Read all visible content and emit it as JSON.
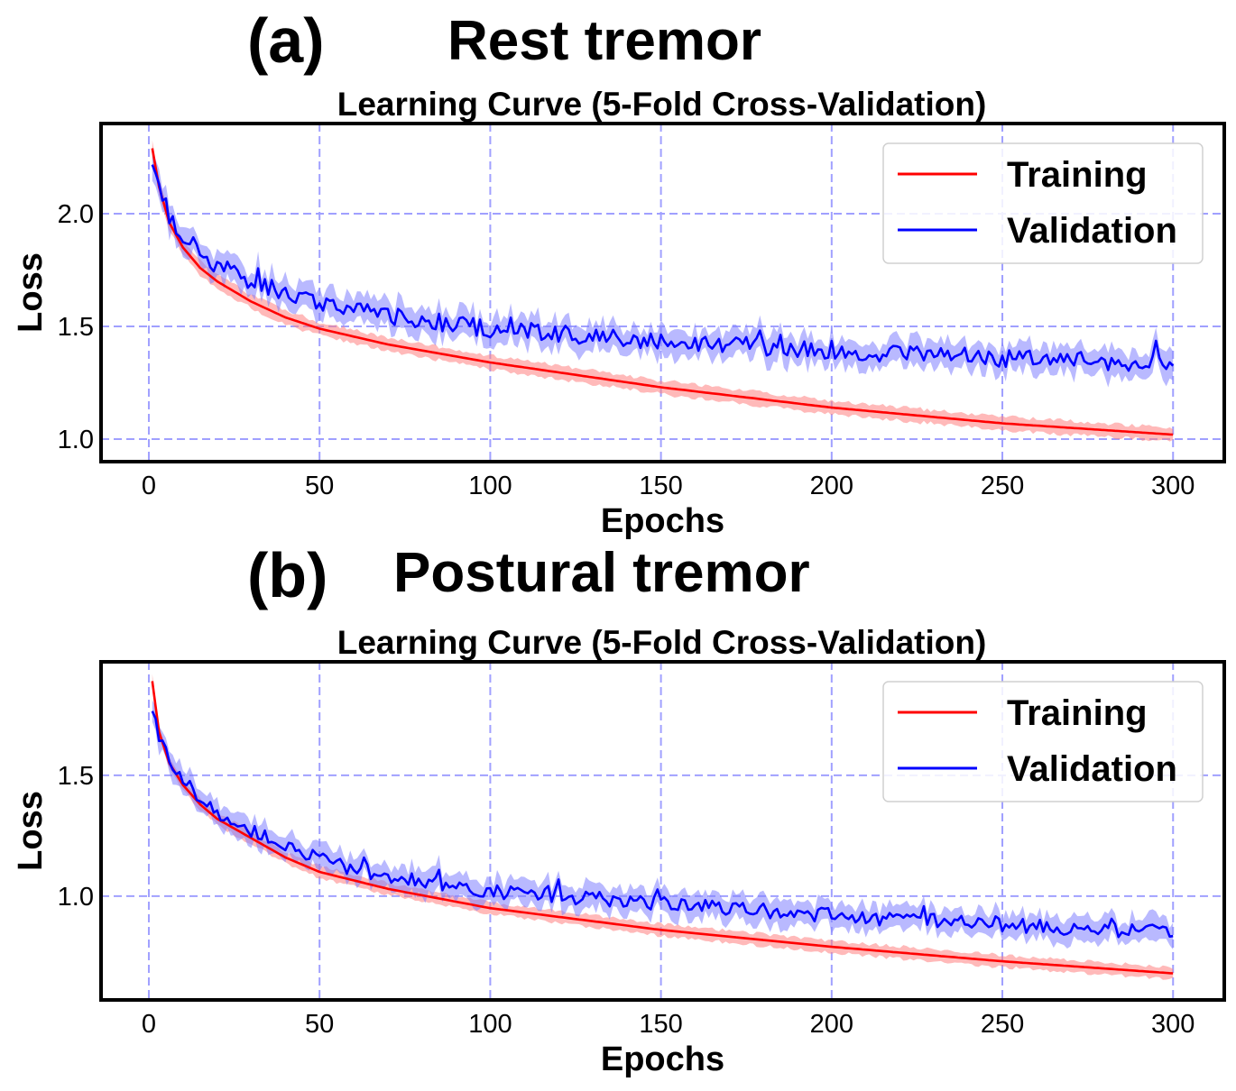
{
  "figure": {
    "panels": [
      {
        "label": "(a)",
        "title": "Rest tremor"
      },
      {
        "label": "(b)",
        "title": "Postural tremor"
      }
    ]
  },
  "chart_data": [
    {
      "type": "line",
      "title": "Learning Curve (5-Fold Cross-Validation)",
      "xlabel": "Epochs",
      "ylabel": "Loss",
      "xlim": [
        -14,
        315
      ],
      "ylim": [
        0.9,
        2.4
      ],
      "xticks": [
        0,
        50,
        100,
        150,
        200,
        250,
        300
      ],
      "yticks": [
        1.0,
        1.5,
        2.0
      ],
      "xtick_labels": [
        "0",
        "50",
        "100",
        "150",
        "200",
        "250",
        "300"
      ],
      "ytick_labels": [
        "1.0",
        "1.5",
        "2.0"
      ],
      "grid": true,
      "legend": {
        "position": "top-right",
        "entries": [
          "Training",
          "Validation"
        ]
      },
      "series": [
        {
          "name": "Training",
          "color": "#ff0000",
          "band_color": "#ff8080",
          "x": [
            1,
            3,
            6,
            10,
            15,
            20,
            30,
            40,
            50,
            70,
            100,
            150,
            200,
            250,
            300
          ],
          "values": [
            2.29,
            2.12,
            1.96,
            1.85,
            1.76,
            1.7,
            1.61,
            1.54,
            1.49,
            1.42,
            1.34,
            1.23,
            1.14,
            1.07,
            1.02
          ],
          "band": 0.03
        },
        {
          "name": "Validation",
          "color": "#0000ff",
          "band_color": "#8080ff",
          "x": [
            1,
            3,
            6,
            10,
            15,
            20,
            30,
            40,
            50,
            70,
            100,
            150,
            200,
            250,
            300
          ],
          "values": [
            2.25,
            2.13,
            1.98,
            1.9,
            1.83,
            1.77,
            1.7,
            1.65,
            1.6,
            1.55,
            1.49,
            1.43,
            1.39,
            1.36,
            1.33
          ],
          "band": 0.06,
          "noise": 0.04
        }
      ]
    },
    {
      "type": "line",
      "title": "Learning Curve (5-Fold Cross-Validation)",
      "xlabel": "Epochs",
      "ylabel": "Loss",
      "xlim": [
        -14,
        315
      ],
      "ylim": [
        0.57,
        1.97
      ],
      "xticks": [
        0,
        50,
        100,
        150,
        200,
        250,
        300
      ],
      "yticks": [
        1.0,
        1.5
      ],
      "xtick_labels": [
        "0",
        "50",
        "100",
        "150",
        "200",
        "250",
        "300"
      ],
      "ytick_labels": [
        "1.0",
        "1.5"
      ],
      "grid": true,
      "legend": {
        "position": "top-right",
        "entries": [
          "Training",
          "Validation"
        ]
      },
      "series": [
        {
          "name": "Training",
          "color": "#ff0000",
          "band_color": "#ff8080",
          "x": [
            1,
            3,
            6,
            10,
            15,
            20,
            30,
            40,
            50,
            70,
            100,
            150,
            200,
            250,
            300
          ],
          "values": [
            1.89,
            1.68,
            1.55,
            1.46,
            1.38,
            1.32,
            1.24,
            1.16,
            1.1,
            1.03,
            0.95,
            0.86,
            0.79,
            0.73,
            0.68
          ],
          "band": 0.025
        },
        {
          "name": "Validation",
          "color": "#0000ff",
          "band_color": "#8080ff",
          "x": [
            1,
            3,
            6,
            10,
            15,
            20,
            30,
            40,
            50,
            70,
            100,
            150,
            200,
            250,
            300
          ],
          "values": [
            1.79,
            1.66,
            1.56,
            1.48,
            1.41,
            1.33,
            1.27,
            1.21,
            1.15,
            1.08,
            1.02,
            0.97,
            0.92,
            0.88,
            0.85
          ],
          "band": 0.05,
          "noise": 0.03
        }
      ]
    }
  ]
}
